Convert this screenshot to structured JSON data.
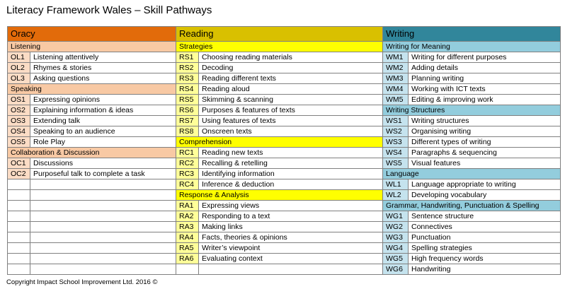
{
  "title": "Literacy Framework Wales – Skill Pathways",
  "copyright": "Copyright Impact School Improvement Ltd. 2016 ©",
  "columns": {
    "oracy": "Oracy",
    "reading": "Reading",
    "writing": "Writing"
  },
  "colors": {
    "oracy_header": "#e26b0a",
    "oracy_section": "#f8c9a4",
    "reading_header": "#d9c000",
    "reading_section": "#ffff00",
    "writing_header": "#31869b",
    "writing_section": "#93cddd"
  },
  "rows": [
    {
      "o": {
        "section": "Listening"
      },
      "r": {
        "section": "Strategies"
      },
      "w": {
        "section": "Writing for Meaning"
      }
    },
    {
      "o": {
        "code": "OL1",
        "text": "Listening attentively"
      },
      "r": {
        "code": "RS1",
        "text": "Choosing reading materials"
      },
      "w": {
        "code": "WM1",
        "text": "Writing for different purposes"
      }
    },
    {
      "o": {
        "code": "OL2",
        "text": "Rhymes & stories"
      },
      "r": {
        "code": "RS2",
        "text": "Decoding"
      },
      "w": {
        "code": "WM2",
        "text": "Adding details"
      }
    },
    {
      "o": {
        "code": "OL3",
        "text": "Asking questions"
      },
      "r": {
        "code": "RS3",
        "text": "Reading different texts"
      },
      "w": {
        "code": "WM3",
        "text": "Planning writing"
      }
    },
    {
      "o": {
        "section": "Speaking"
      },
      "r": {
        "code": "RS4",
        "text": "Reading aloud"
      },
      "w": {
        "code": "WM4",
        "text": "Working with ICT texts"
      }
    },
    {
      "o": {
        "code": "OS1",
        "text": "Expressing opinions"
      },
      "r": {
        "code": "RS5",
        "text": "Skimming & scanning"
      },
      "w": {
        "code": "WM5",
        "text": "Editing & improving work"
      }
    },
    {
      "o": {
        "code": "OS2",
        "text": "Explaining information & ideas"
      },
      "r": {
        "code": "RS6",
        "text": "Purposes & features of texts"
      },
      "w": {
        "section": "Writing Structures"
      }
    },
    {
      "o": {
        "code": "OS3",
        "text": "Extending talk"
      },
      "r": {
        "code": "RS7",
        "text": "Using features of texts"
      },
      "w": {
        "code": "WS1",
        "text": "Writing structures"
      }
    },
    {
      "o": {
        "code": "OS4",
        "text": "Speaking to an audience"
      },
      "r": {
        "code": "RS8",
        "text": "Onscreen texts"
      },
      "w": {
        "code": "WS2",
        "text": "Organising writing"
      }
    },
    {
      "o": {
        "code": "OS5",
        "text": "Role Play"
      },
      "r": {
        "section": "Comprehension"
      },
      "w": {
        "code": "WS3",
        "text": "Different types of writing"
      }
    },
    {
      "o": {
        "section": "Collaboration & Discussion"
      },
      "r": {
        "code": "RC1",
        "text": "Reading new texts"
      },
      "w": {
        "code": "WS4",
        "text": "Paragraphs & sequencing"
      }
    },
    {
      "o": {
        "code": "OC1",
        "text": "Discussions"
      },
      "r": {
        "code": "RC2",
        "text": "Recalling & retelling"
      },
      "w": {
        "code": "WS5",
        "text": "Visual features"
      }
    },
    {
      "o": {
        "code": "OC2",
        "text": "Purposeful talk to complete a task"
      },
      "r": {
        "code": "RC3",
        "text": "Identifying information"
      },
      "w": {
        "section": "Language"
      }
    },
    {
      "o": {
        "blank": true
      },
      "r": {
        "code": "RC4",
        "text": "Inference & deduction"
      },
      "w": {
        "code": "WL1",
        "text": "Language appropriate to writing"
      }
    },
    {
      "o": {
        "blank": true
      },
      "r": {
        "section": "Response & Analysis"
      },
      "w": {
        "code": "WL2",
        "text": "Developing vocabulary"
      }
    },
    {
      "o": {
        "blank": true
      },
      "r": {
        "code": "RA1",
        "text": "Expressing views"
      },
      "w": {
        "section": "Grammar, Handwriting, Punctuation & Spelling"
      }
    },
    {
      "o": {
        "blank": true
      },
      "r": {
        "code": "RA2",
        "text": "Responding to a text"
      },
      "w": {
        "code": "WG1",
        "text": "Sentence structure"
      }
    },
    {
      "o": {
        "blank": true
      },
      "r": {
        "code": "RA3",
        "text": "Making links"
      },
      "w": {
        "code": "WG2",
        "text": "Connectives"
      }
    },
    {
      "o": {
        "blank": true
      },
      "r": {
        "code": "RA4",
        "text": "Facts, theories & opinions"
      },
      "w": {
        "code": "WG3",
        "text": "Punctuation"
      }
    },
    {
      "o": {
        "blank": true
      },
      "r": {
        "code": "RA5",
        "text": "Writer’s viewpoint"
      },
      "w": {
        "code": "WG4",
        "text": "Spelling strategies"
      }
    },
    {
      "o": {
        "blank": true
      },
      "r": {
        "code": "RA6",
        "text": "Evaluating context"
      },
      "w": {
        "code": "WG5",
        "text": "High frequency words"
      }
    },
    {
      "o": {
        "blank": true
      },
      "r": {
        "blank": true
      },
      "w": {
        "code": "WG6",
        "text": "Handwriting"
      }
    }
  ]
}
